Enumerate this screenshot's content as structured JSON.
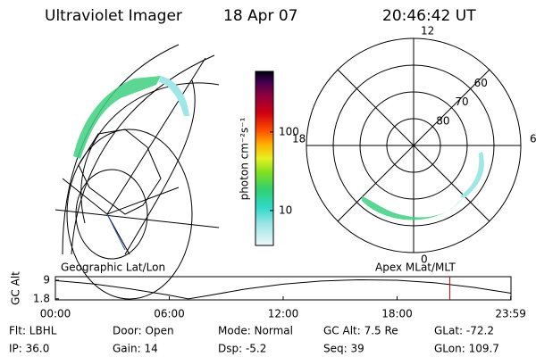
{
  "header": {
    "instrument": "Ultraviolet Imager",
    "date": "18 Apr 07",
    "time": "20:46:42 UT"
  },
  "geo_panel": {
    "caption": "Geographic Lat/Lon"
  },
  "colorbar": {
    "label": "photon cm⁻²s⁻¹",
    "log": true,
    "lim": [
      3.6,
      590
    ],
    "ticks": [
      10,
      100
    ]
  },
  "polar_panel": {
    "caption": "Apex MLat/MLT",
    "lat_rings": [
      80,
      70,
      60
    ],
    "mlt_labels": [
      12,
      18,
      6,
      0
    ]
  },
  "chart_data": {
    "type": "line",
    "ylabel": "GC Alt",
    "xlim": [
      0,
      24
    ],
    "ylim": [
      1.4,
      10.4
    ],
    "xticks": [
      {
        "value": 0,
        "label": "00:00"
      },
      {
        "value": 6,
        "label": "06:00"
      },
      {
        "value": 12,
        "label": "12:00"
      },
      {
        "value": 18,
        "label": "18:00"
      },
      {
        "value": 23.983,
        "label": "23:59"
      }
    ],
    "yticks": [
      1.8,
      9.0
    ],
    "x": [
      0,
      2,
      4,
      6,
      7,
      8,
      10,
      12,
      14,
      16,
      18,
      20,
      22,
      24
    ],
    "series": [
      {
        "color": "#000000",
        "values": [
          8.9,
          7.6,
          5.6,
          3.2,
          1.8,
          3.0,
          5.6,
          7.5,
          8.7,
          9.2,
          9.0,
          8.0,
          6.3,
          4.0
        ]
      }
    ],
    "marker_x": 20.78,
    "marker_color": "#cc0000"
  },
  "info": [
    [
      "Flt: LBHL",
      "Door: Open",
      "Mode: Normal",
      "GC Alt: 7.5 Re",
      "GLat: -72.2"
    ],
    [
      "IP: 36.0",
      "Gain: 14",
      "Dsp: -5.2",
      "Seq: 39",
      "GLon: 109.7"
    ]
  ]
}
